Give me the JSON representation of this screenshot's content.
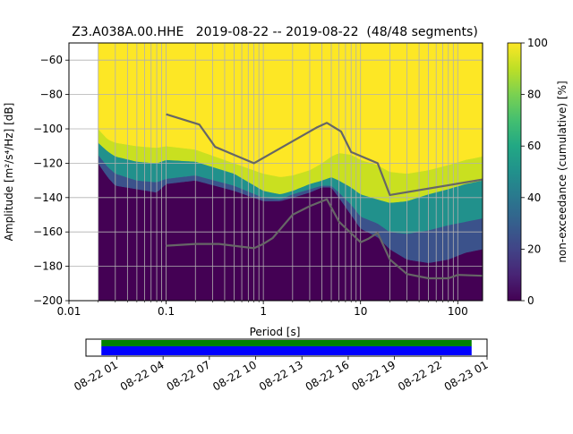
{
  "chart_data": [
    {
      "type": "heatmap",
      "title": "Z3.A038A.00.HHE   2019-08-22 -- 2019-08-22  (48/48 segments)",
      "xlabel": "Period [s]",
      "ylabel": "Amplitude [m²/s⁴/Hz] [dB]",
      "x_scale": "log",
      "xlim": [
        0.01,
        180
      ],
      "ylim": [
        -200,
        -50
      ],
      "x_ticks": [
        "0.01",
        "0.1",
        "1",
        "10",
        "100"
      ],
      "y_ticks": [
        "−60",
        "−80",
        "−100",
        "−120",
        "−140",
        "−160",
        "−180",
        "−200"
      ],
      "grid": true,
      "colormap": "viridis",
      "colorbar": {
        "label": "non-exceedance (cumulative) [%]",
        "range": [
          0,
          100
        ],
        "ticks": [
          "0",
          "20",
          "40",
          "60",
          "80",
          "100"
        ]
      },
      "data_period_range": [
        0.02,
        180
      ],
      "colormap_boundaries": {
        "period": [
          0.02,
          0.025,
          0.03,
          0.05,
          0.08,
          0.1,
          0.2,
          0.5,
          1,
          1.5,
          2,
          3,
          4,
          5,
          6,
          8,
          10,
          15,
          20,
          30,
          50,
          80,
          120,
          180
        ],
        "p10": [
          -120,
          -128,
          -133,
          -135,
          -137,
          -132,
          -130,
          -136,
          -142,
          -142,
          -140,
          -137,
          -134,
          -134,
          -140,
          -150,
          -158,
          -163,
          -170,
          -176,
          -178,
          -176,
          -172,
          -170
        ],
        "p50": [
          -115,
          -122,
          -126,
          -130,
          -131,
          -129,
          -127,
          -133,
          -140,
          -141,
          -138,
          -135,
          -133,
          -133,
          -137,
          -144,
          -151,
          -155,
          -160,
          -161,
          -159,
          -156,
          -154,
          -152
        ],
        "p90": [
          -108,
          -113,
          -116,
          -119,
          -120,
          -118,
          -119,
          -126,
          -136,
          -138,
          -136,
          -132,
          -130,
          -128,
          -130,
          -134,
          -138,
          -141,
          -143,
          -142,
          -138,
          -135,
          -132,
          -130
        ],
        "p100": [
          -100,
          -106,
          -108,
          -110,
          -111,
          -110,
          -112,
          -120,
          -126,
          -128,
          -127,
          -124,
          -120,
          -116,
          -114,
          -115,
          -118,
          -121,
          -125,
          -126,
          -124,
          -121,
          -118,
          -116
        ]
      },
      "series": [
        {
          "name": "",
          "color": "#666666",
          "x": [
            0.1,
            0.22,
            0.32,
            0.8,
            3.6,
            4.5,
            6.3,
            8.0,
            15,
            20,
            180
          ],
          "y": [
            -91.5,
            -97.5,
            -110.5,
            -120,
            -99,
            -96.5,
            -101.5,
            -113.5,
            -120,
            -138.5,
            -129.5
          ]
        },
        {
          "name": "",
          "color": "#666666",
          "x": [
            0.1,
            0.2,
            0.35,
            0.8,
            1.0,
            1.25,
            2.0,
            3.0,
            4.5,
            6.0,
            10,
            12,
            15,
            20,
            30,
            50,
            80,
            100,
            180
          ],
          "y": [
            -168,
            -167,
            -167,
            -169.5,
            -167,
            -163.5,
            -150,
            -145,
            -141,
            -154,
            -166,
            -164,
            -160.5,
            -176,
            -184.5,
            -187,
            -187,
            -185,
            -185.5
          ]
        }
      ]
    },
    {
      "type": "bar",
      "x_ticks": [
        "08-22 01",
        "08-22 04",
        "08-22 07",
        "08-22 10",
        "08-22 13",
        "08-22 16",
        "08-22 19",
        "08-22 22",
        "08-23 01"
      ],
      "x_range": [
        "2019-08-21 23:00",
        "2019-08-23 01:00"
      ],
      "bars": [
        {
          "color": "#008000",
          "start": "2019-08-22 00:00",
          "end": "2019-08-23 00:00"
        },
        {
          "color": "#0000ff",
          "start": "2019-08-22 00:00",
          "end": "2019-08-23 00:00"
        }
      ]
    }
  ]
}
